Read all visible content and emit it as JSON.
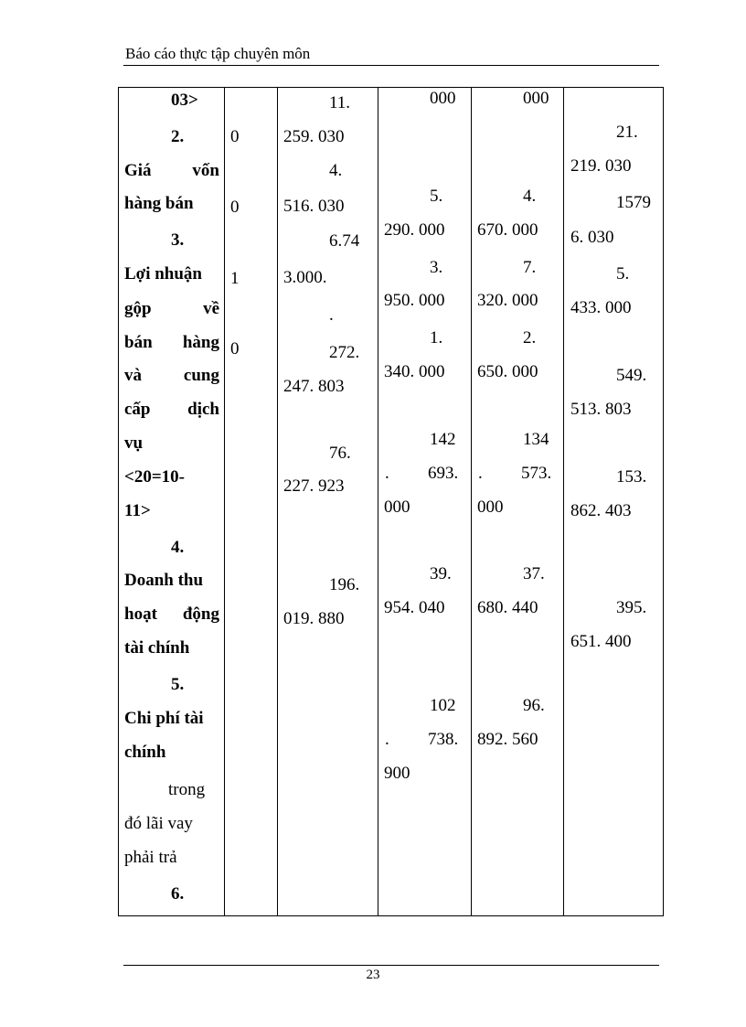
{
  "header": {
    "title": "Báo cáo thực tập chuyên môn"
  },
  "table": {
    "col1": [
      "03>",
      "2.",
      "Giá vốn",
      "hàng bán",
      "3.",
      "Lợi nhuận",
      "gộp về",
      "bán hàng",
      "và cung",
      "cấp dịch",
      "vụ",
      "<20=10-",
      "11>",
      "4.",
      "Doanh thu",
      "hoạt động",
      "tài chính",
      "5.",
      "Chi phí tài",
      "chính",
      "trong",
      "đó lãi vay",
      "phải trả",
      "6."
    ],
    "col2": [
      "0",
      "0",
      "1",
      "0"
    ],
    "col3": [
      "11.",
      "259. 030",
      "4.",
      "516. 030",
      "6.74",
      "3.000.",
      ".",
      "272.",
      "247. 803",
      "76.",
      "227. 923",
      "196.",
      "019. 880"
    ],
    "col4": [
      "000",
      "5.",
      "290. 000",
      "3.",
      "950. 000",
      "1.",
      "340. 000",
      "142",
      ".",
      "693.",
      "000",
      "39.",
      "954. 040",
      "102",
      ".",
      "738.",
      "900"
    ],
    "col5": [
      "000",
      "4.",
      "670. 000",
      "7.",
      "320. 000",
      "2.",
      "650. 000",
      "134",
      ".",
      "573.",
      "000",
      "37.",
      "680. 440",
      "96.",
      "892. 560"
    ],
    "col6": [
      "21.",
      "219. 030",
      "1579",
      "6. 030",
      "5.",
      "433. 000",
      "549.",
      "513. 803",
      "153.",
      "862. 403",
      "395.",
      "651. 400"
    ]
  },
  "footer": {
    "page_number": "23"
  }
}
